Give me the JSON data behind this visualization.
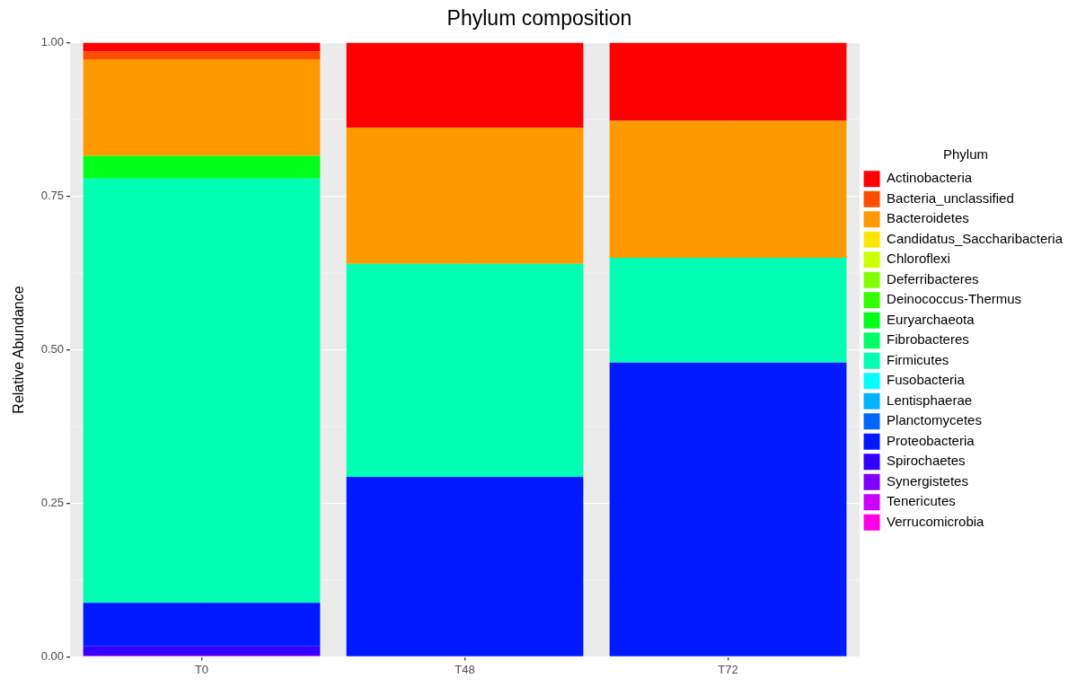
{
  "chart_data": {
    "type": "bar",
    "title": "Phylum composition",
    "ylabel": "Relative Abundance",
    "legend_title": "Phylum",
    "categories": [
      "T0",
      "T48",
      "T72"
    ],
    "stacked": true,
    "ylim": [
      0,
      1
    ],
    "yticks": [
      {
        "value": 0,
        "label": "0.00"
      },
      {
        "value": 0.25,
        "label": "0.25"
      },
      {
        "value": 0.5,
        "label": "0.50"
      },
      {
        "value": 0.75,
        "label": "0.75"
      },
      {
        "value": 1,
        "label": "1.00"
      }
    ],
    "grid": true,
    "legend": "right",
    "series": [
      {
        "name": "Verrucomicrobia",
        "color": "#ff00e6",
        "values": [
          0.002,
          0,
          0
        ]
      },
      {
        "name": "Tenericutes",
        "color": "#cc00ff",
        "values": [
          0,
          0,
          0
        ]
      },
      {
        "name": "Synergistetes",
        "color": "#7f00ff",
        "values": [
          0,
          0,
          0
        ]
      },
      {
        "name": "Spirochaetes",
        "color": "#3300ff",
        "values": [
          0.015,
          0,
          0
        ]
      },
      {
        "name": "Proteobacteria",
        "color": "#0019ff",
        "values": [
          0.071,
          0.293,
          0.479
        ]
      },
      {
        "name": "Planctomycetes",
        "color": "#0066ff",
        "values": [
          0,
          0,
          0
        ]
      },
      {
        "name": "Lentisphaerae",
        "color": "#00b2ff",
        "values": [
          0,
          0,
          0
        ]
      },
      {
        "name": "Fusobacteria",
        "color": "#00ffff",
        "values": [
          0,
          0,
          0
        ]
      },
      {
        "name": "Firmicutes",
        "color": "#00ffb2",
        "values": [
          0.691,
          0.347,
          0.171
        ]
      },
      {
        "name": "Fibrobacteres",
        "color": "#00ff66",
        "values": [
          0,
          0,
          0
        ]
      },
      {
        "name": "Euryarchaeota",
        "color": "#00ff19",
        "values": [
          0.037,
          0,
          0
        ]
      },
      {
        "name": "Deinococcus-Thermus",
        "color": "#33ff00",
        "values": [
          0,
          0,
          0
        ]
      },
      {
        "name": "Deferribacteres",
        "color": "#80ff00",
        "values": [
          0,
          0,
          0
        ]
      },
      {
        "name": "Chloroflexi",
        "color": "#ccff00",
        "values": [
          0,
          0,
          0
        ]
      },
      {
        "name": "Candidatus_Saccharibacteria",
        "color": "#ffe500",
        "values": [
          0,
          0,
          0
        ]
      },
      {
        "name": "Bacteroidetes",
        "color": "#ff9900",
        "values": [
          0.157,
          0.222,
          0.223
        ]
      },
      {
        "name": "Bacteria_unclassified",
        "color": "#ff4d00",
        "values": [
          0.013,
          0,
          0
        ]
      },
      {
        "name": "Actinobacteria",
        "color": "#ff0000",
        "values": [
          0.014,
          0.138,
          0.127
        ]
      }
    ]
  }
}
